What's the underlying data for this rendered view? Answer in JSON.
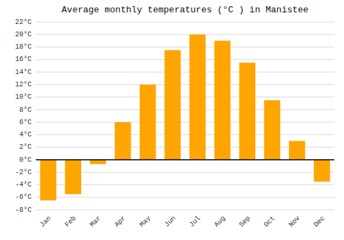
{
  "chart_data": {
    "type": "bar",
    "title": "Average monthly temperatures (°C ) in Manistee",
    "categories": [
      "Jan",
      "Feb",
      "Mar",
      "Apr",
      "May",
      "Jun",
      "Jul",
      "Aug",
      "Sep",
      "Oct",
      "Nov",
      "Dec"
    ],
    "values": [
      -6.5,
      -5.5,
      -0.7,
      6.0,
      12.0,
      17.5,
      20.0,
      19.0,
      15.5,
      9.5,
      3.0,
      -3.5
    ],
    "color": "#FFA500",
    "ylim": [
      -8,
      22
    ],
    "yticks": [
      {
        "value": -8,
        "label": "-8°C"
      },
      {
        "value": -6,
        "label": "-6°C"
      },
      {
        "value": -4,
        "label": "-4°C"
      },
      {
        "value": -2,
        "label": "-2°C"
      },
      {
        "value": 0,
        "label": "0°C"
      },
      {
        "value": 2,
        "label": "2°C"
      },
      {
        "value": 4,
        "label": "4°C"
      },
      {
        "value": 6,
        "label": "6°C"
      },
      {
        "value": 8,
        "label": "8°C"
      },
      {
        "value": 10,
        "label": "10°C"
      },
      {
        "value": 12,
        "label": "12°C"
      },
      {
        "value": 14,
        "label": "14°C"
      },
      {
        "value": 16,
        "label": "16°C"
      },
      {
        "value": 18,
        "label": "18°C"
      },
      {
        "value": 20,
        "label": "20°C"
      },
      {
        "value": 22,
        "label": "22°C"
      }
    ],
    "grid": true
  }
}
